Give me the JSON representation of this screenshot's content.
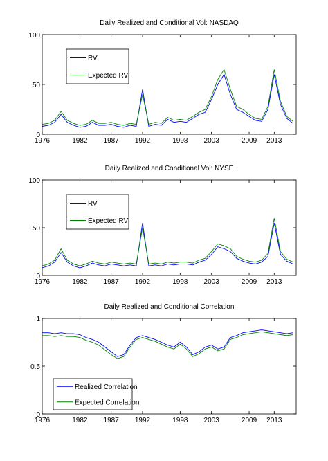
{
  "chart_data": [
    {
      "type": "line",
      "title": "Daily Realized and Conditional Vol: NASDAQ",
      "xlim": [
        1976,
        2016.5
      ],
      "ylim": [
        0,
        100
      ],
      "xticks": [
        "1976",
        "1982",
        "1987",
        "1992",
        "1998",
        "2003",
        "2009",
        "2013"
      ],
      "yticks": [
        "0",
        "50",
        "100"
      ],
      "legend": "top-left",
      "series": [
        {
          "name": "RV",
          "color": "#0000ff",
          "x": [
            1976,
            1977,
            1978,
            1979,
            1980,
            1981,
            1982,
            1983,
            1984,
            1985,
            1986,
            1987,
            1988,
            1989,
            1990,
            1991,
            1992,
            1993,
            1994,
            1995,
            1996,
            1997,
            1998,
            1999,
            2000,
            2001,
            2002,
            2003,
            2004,
            2005,
            2006,
            2007,
            2008,
            2009,
            2010,
            2011,
            2012,
            2013,
            2014,
            2015,
            2016
          ],
          "values": [
            8,
            9,
            12,
            20,
            12,
            9,
            7,
            8,
            12,
            9,
            9,
            10,
            8,
            7,
            9,
            8,
            45,
            8,
            10,
            9,
            15,
            12,
            13,
            12,
            16,
            20,
            22,
            35,
            50,
            60,
            40,
            25,
            22,
            18,
            14,
            13,
            25,
            60,
            30,
            16,
            11
          ]
        },
        {
          "name": "Expected RV",
          "color": "#008000",
          "x": [
            1976,
            1977,
            1978,
            1979,
            1980,
            1981,
            1982,
            1983,
            1984,
            1985,
            1986,
            1987,
            1988,
            1989,
            1990,
            1991,
            1992,
            1993,
            1994,
            1995,
            1996,
            1997,
            1998,
            1999,
            2000,
            2001,
            2002,
            2003,
            2004,
            2005,
            2006,
            2007,
            2008,
            2009,
            2010,
            2011,
            2012,
            2013,
            2014,
            2015,
            2016
          ],
          "values": [
            10,
            11,
            14,
            23,
            14,
            11,
            9,
            10,
            14,
            11,
            11,
            12,
            10,
            9,
            11,
            10,
            40,
            10,
            12,
            11,
            17,
            14,
            15,
            14,
            18,
            22,
            25,
            38,
            55,
            65,
            45,
            28,
            25,
            20,
            16,
            15,
            28,
            65,
            33,
            18,
            13
          ]
        }
      ]
    },
    {
      "type": "line",
      "title": "Daily Realized and Conditional Vol: NYSE",
      "xlim": [
        1976,
        2016.5
      ],
      "ylim": [
        0,
        100
      ],
      "xticks": [
        "1976",
        "1982",
        "1987",
        "1992",
        "1998",
        "2003",
        "2009",
        "2013"
      ],
      "yticks": [
        "0",
        "50",
        "100"
      ],
      "legend": "top-left",
      "series": [
        {
          "name": "RV",
          "color": "#0000ff",
          "x": [
            1976,
            1977,
            1978,
            1979,
            1980,
            1981,
            1982,
            1983,
            1984,
            1985,
            1986,
            1987,
            1988,
            1989,
            1990,
            1991,
            1992,
            1993,
            1994,
            1995,
            1996,
            1997,
            1998,
            1999,
            2000,
            2001,
            2002,
            2003,
            2004,
            2005,
            2006,
            2007,
            2008,
            2009,
            2010,
            2011,
            2012,
            2013,
            2014,
            2015,
            2016
          ],
          "values": [
            8,
            10,
            14,
            24,
            14,
            10,
            8,
            10,
            13,
            11,
            10,
            12,
            11,
            10,
            11,
            10,
            55,
            10,
            11,
            10,
            12,
            11,
            12,
            12,
            11,
            14,
            16,
            22,
            30,
            28,
            25,
            18,
            15,
            13,
            12,
            14,
            20,
            55,
            22,
            15,
            12
          ]
        },
        {
          "name": "Expected RV",
          "color": "#008000",
          "x": [
            1976,
            1977,
            1978,
            1979,
            1980,
            1981,
            1982,
            1983,
            1984,
            1985,
            1986,
            1987,
            1988,
            1989,
            1990,
            1991,
            1992,
            1993,
            1994,
            1995,
            1996,
            1997,
            1998,
            1999,
            2000,
            2001,
            2002,
            2003,
            2004,
            2005,
            2006,
            2007,
            2008,
            2009,
            2010,
            2011,
            2012,
            2013,
            2014,
            2015,
            2016
          ],
          "values": [
            10,
            12,
            16,
            28,
            16,
            12,
            10,
            12,
            15,
            13,
            12,
            14,
            13,
            12,
            13,
            12,
            50,
            12,
            13,
            12,
            14,
            13,
            14,
            14,
            13,
            16,
            18,
            25,
            33,
            31,
            28,
            20,
            17,
            15,
            14,
            16,
            23,
            60,
            25,
            17,
            14
          ]
        }
      ]
    },
    {
      "type": "line",
      "title": "Daily Realized and Conditional Correlation",
      "xlim": [
        1976,
        2016.5
      ],
      "ylim": [
        0,
        1
      ],
      "xticks": [
        "1976",
        "1982",
        "1987",
        "1992",
        "1998",
        "2003",
        "2009",
        "2013"
      ],
      "yticks": [
        "0",
        "0.5",
        "1"
      ],
      "legend": "bottom-left",
      "series": [
        {
          "name": "Realized Correlation",
          "color": "#0000ff",
          "x": [
            1976,
            1977,
            1978,
            1979,
            1980,
            1981,
            1982,
            1983,
            1984,
            1985,
            1986,
            1987,
            1988,
            1989,
            1990,
            1991,
            1992,
            1993,
            1994,
            1995,
            1996,
            1997,
            1998,
            1999,
            2000,
            2001,
            2002,
            2003,
            2004,
            2005,
            2006,
            2007,
            2008,
            2009,
            2010,
            2011,
            2012,
            2013,
            2014,
            2015,
            2016
          ],
          "values": [
            0.85,
            0.85,
            0.84,
            0.85,
            0.84,
            0.84,
            0.83,
            0.8,
            0.78,
            0.75,
            0.7,
            0.65,
            0.6,
            0.62,
            0.72,
            0.8,
            0.82,
            0.8,
            0.78,
            0.75,
            0.72,
            0.7,
            0.75,
            0.7,
            0.62,
            0.65,
            0.7,
            0.72,
            0.68,
            0.7,
            0.8,
            0.82,
            0.85,
            0.86,
            0.87,
            0.88,
            0.87,
            0.86,
            0.85,
            0.84,
            0.85
          ]
        },
        {
          "name": "Expected Correlation",
          "color": "#008000",
          "x": [
            1976,
            1977,
            1978,
            1979,
            1980,
            1981,
            1982,
            1983,
            1984,
            1985,
            1986,
            1987,
            1988,
            1989,
            1990,
            1991,
            1992,
            1993,
            1994,
            1995,
            1996,
            1997,
            1998,
            1999,
            2000,
            2001,
            2002,
            2003,
            2004,
            2005,
            2006,
            2007,
            2008,
            2009,
            2010,
            2011,
            2012,
            2013,
            2014,
            2015,
            2016
          ],
          "values": [
            0.82,
            0.82,
            0.81,
            0.82,
            0.81,
            0.81,
            0.8,
            0.77,
            0.75,
            0.72,
            0.67,
            0.62,
            0.58,
            0.6,
            0.7,
            0.78,
            0.8,
            0.78,
            0.76,
            0.73,
            0.7,
            0.68,
            0.73,
            0.68,
            0.6,
            0.63,
            0.68,
            0.7,
            0.66,
            0.68,
            0.78,
            0.8,
            0.83,
            0.84,
            0.85,
            0.86,
            0.85,
            0.84,
            0.83,
            0.82,
            0.83
          ]
        }
      ]
    }
  ]
}
